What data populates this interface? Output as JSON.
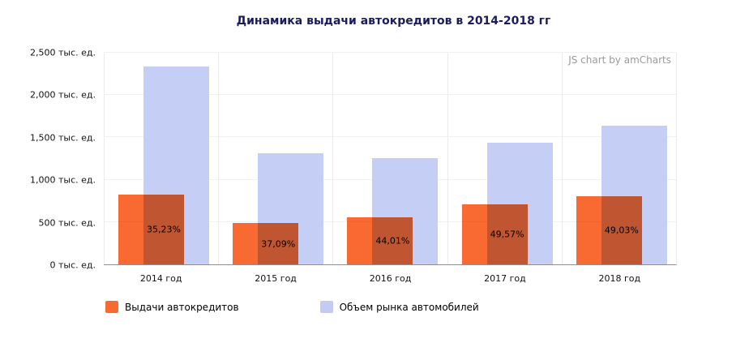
{
  "title": "Динамика выдачи автокредитов в 2014-2018 гг",
  "watermark": "JS chart by amCharts",
  "colors": {
    "series_loans": "#F96A33",
    "series_market": "#C2CBF3",
    "title_text": "#1b1b5e",
    "axis_line": "#8f8f8f",
    "grid_line": "#ebebeb",
    "watermark_text": "#9a9a9a"
  },
  "chart_data": {
    "type": "bar",
    "title": "Динамика выдачи автокредитов в 2014-2018 гг",
    "xlabel": "",
    "ylabel": "",
    "ylim": [
      0,
      2500
    ],
    "grid": "vertical-category-lines",
    "legend_position": "bottom",
    "categories": [
      "2014 год",
      "2015 год",
      "2016 год",
      "2017 год",
      "2018 год"
    ],
    "series": [
      {
        "name": "Выдачи автокредитов",
        "color": "#F96A33",
        "values": [
          823,
          488,
          553,
          713,
          801
        ],
        "labels": [
          "35,23%",
          "37,09%",
          "44,01%",
          "49,57%",
          "49,03%"
        ]
      },
      {
        "name": "Объем рынка автомобилей",
        "color": "#C2CBF3",
        "values": [
          2336,
          1316,
          1256,
          1438,
          1634
        ]
      }
    ],
    "yticks": [
      {
        "value": 0,
        "label": "0 тыс. ед."
      },
      {
        "value": 500,
        "label": "500 тыс. ед."
      },
      {
        "value": 1000,
        "label": "1,000 тыс. ед."
      },
      {
        "value": 1500,
        "label": "1,500 тыс. ед."
      },
      {
        "value": 2000,
        "label": "2,000 тыс. ед."
      },
      {
        "value": 2500,
        "label": "2,500 тыс. ед."
      }
    ]
  },
  "legend": {
    "items": [
      {
        "label": "Выдачи автокредитов",
        "color": "#F96A33"
      },
      {
        "label": "Объем рынка автомобилей",
        "color": "#C2CBF3"
      }
    ]
  }
}
